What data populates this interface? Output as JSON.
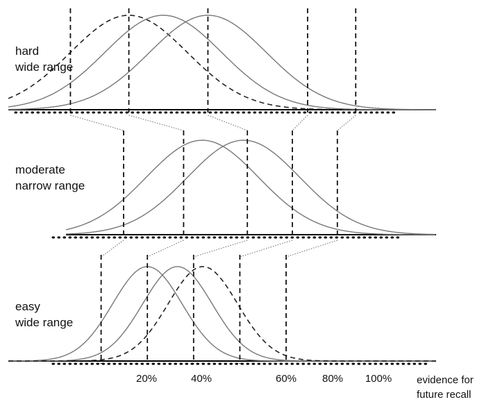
{
  "panels": [
    {
      "id": "hard",
      "label_line1": "hard",
      "label_line2": "wide range",
      "curves": [
        {
          "mean": 0.29,
          "sd": 0.17,
          "style": "dashed"
        },
        {
          "mean": 0.39,
          "sd": 0.17,
          "style": "solid"
        },
        {
          "mean": 0.52,
          "sd": 0.17,
          "style": "solid"
        }
      ],
      "criteria": [
        0.12,
        0.29,
        0.52,
        0.81,
        0.95
      ]
    },
    {
      "id": "moderate",
      "label_line1": "moderate",
      "label_line2": "narrow range",
      "curves": [
        {
          "mean": 0.41,
          "sd": 0.15,
          "style": "solid"
        },
        {
          "mean": 0.52,
          "sd": 0.15,
          "style": "solid"
        }
      ],
      "criteria": [
        0.2,
        0.36,
        0.53,
        0.65,
        0.77
      ]
    },
    {
      "id": "easy",
      "label_line1": "easy",
      "label_line2": "wide range",
      "curves": [
        {
          "mean": 0.4,
          "sd": 0.15,
          "style": "solid"
        },
        {
          "mean": 0.53,
          "sd": 0.15,
          "style": "solid"
        },
        {
          "mean": 0.64,
          "sd": 0.15,
          "style": "dashed"
        }
      ],
      "criteria": [
        0.2,
        0.4,
        0.6,
        0.8,
        1.0
      ]
    }
  ],
  "x_axis": {
    "tick_labels": [
      "20%",
      "40%",
      "60%",
      "80%",
      "100%"
    ],
    "tick_values": [
      0.2,
      0.4,
      0.6,
      0.8,
      1.0
    ],
    "title_line1": "evidence for",
    "title_line2": "future recall"
  },
  "colors": {
    "curve": "#777777",
    "axis": "#000000",
    "criterion": "#111111",
    "connector": "#666666"
  }
}
